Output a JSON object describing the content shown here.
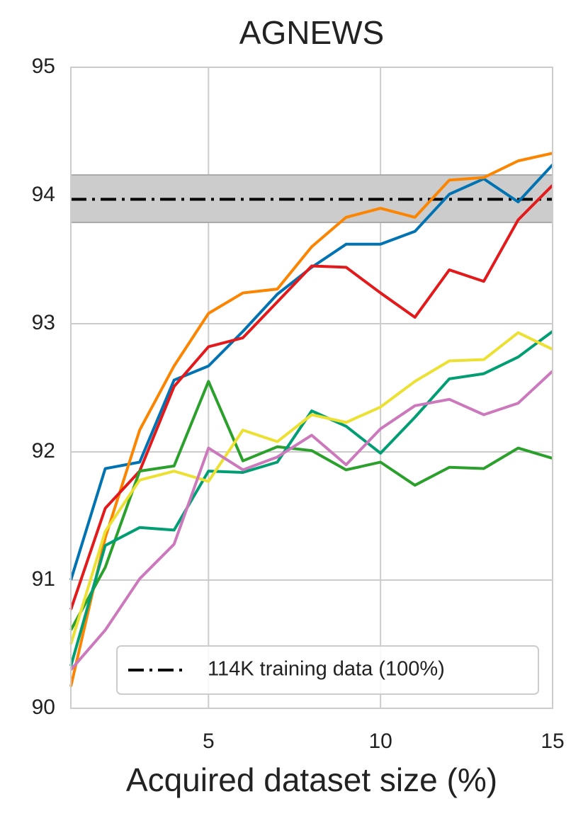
{
  "chart_data": {
    "type": "line",
    "title": "AGNEWS",
    "x_label": "Acquired dataset size (%)",
    "x": [
      1,
      2,
      3,
      4,
      5,
      6,
      7,
      8,
      9,
      10,
      11,
      12,
      13,
      14,
      15
    ],
    "series": [
      {
        "color": "#0173b2",
        "values": [
          91.0,
          91.87,
          91.92,
          92.56,
          92.67,
          92.94,
          93.23,
          93.44,
          93.62,
          93.62,
          93.72,
          94.01,
          94.13,
          93.95,
          94.24
        ]
      },
      {
        "color": "#fb8500",
        "values": [
          90.17,
          91.33,
          92.17,
          92.67,
          93.08,
          93.24,
          93.27,
          93.6,
          93.83,
          93.9,
          93.83,
          94.12,
          94.14,
          94.27,
          94.33
        ]
      },
      {
        "color": "#e31a1c",
        "values": [
          90.77,
          91.56,
          91.85,
          92.51,
          92.82,
          92.89,
          93.17,
          93.45,
          93.44,
          93.24,
          93.05,
          93.42,
          93.33,
          93.81,
          94.08
        ]
      },
      {
        "color": "#2ca02c",
        "values": [
          90.61,
          91.1,
          91.85,
          91.89,
          92.55,
          91.93,
          92.04,
          92.01,
          91.86,
          91.92,
          91.74,
          91.88,
          91.87,
          92.03,
          91.95
        ]
      },
      {
        "color": "#029e73",
        "values": [
          90.33,
          91.27,
          91.41,
          91.39,
          91.85,
          91.84,
          91.92,
          92.32,
          92.2,
          91.99,
          92.27,
          92.57,
          92.61,
          92.74,
          92.94
        ]
      },
      {
        "color": "#ece133",
        "values": [
          90.5,
          91.38,
          91.78,
          91.85,
          91.77,
          92.17,
          92.08,
          92.29,
          92.23,
          92.35,
          92.55,
          92.71,
          92.72,
          92.93,
          92.8
        ]
      },
      {
        "color": "#cc78bc",
        "values": [
          90.3,
          90.61,
          91.01,
          91.28,
          92.03,
          91.86,
          91.96,
          92.13,
          91.9,
          92.18,
          92.36,
          92.41,
          92.29,
          92.38,
          92.63
        ]
      }
    ],
    "reference": {
      "label": "114K training data (100%)",
      "value": 93.97,
      "band_low": 93.79,
      "band_high": 94.16,
      "color": "#000000",
      "band_color": "#cccccc"
    },
    "xlim": [
      1,
      15
    ],
    "xticks": [
      5,
      10,
      15
    ],
    "ylim": [
      90,
      95
    ],
    "yticks": [
      90,
      91,
      92,
      93,
      94,
      95
    ],
    "grid": true,
    "legend_position": "lower right"
  }
}
